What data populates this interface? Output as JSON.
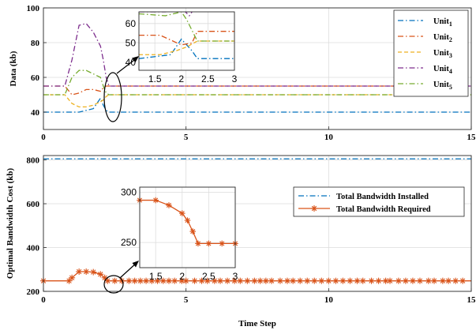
{
  "colors": {
    "unit1": "#0072BD",
    "unit2": "#D95319",
    "unit3": "#EDB120",
    "unit4": "#7E2F8E",
    "unit5": "#77AC30",
    "installed": "#0072BD",
    "required": "#D95319",
    "grid": "#dcdcdc",
    "axis": "#262626"
  },
  "chart_data": [
    {
      "type": "line",
      "ylabel": "Data (kb)",
      "xlabel": "",
      "xlim": [
        0,
        15
      ],
      "ylim": [
        30,
        100
      ],
      "xticks": [
        "0",
        "5",
        "10",
        "15"
      ],
      "yticks": [
        "40",
        "60",
        "80",
        "100"
      ],
      "grid": true,
      "legend_position": "top-right",
      "series": [
        {
          "key": "u1",
          "name": "Unit",
          "sub": "1",
          "color_key": "unit1",
          "dash": "dashdot",
          "x": [
            0,
            0.75,
            1.0,
            1.25,
            1.5,
            1.75,
            2.0,
            2.1,
            2.2,
            2.3,
            15
          ],
          "y": [
            40,
            40,
            40,
            40,
            41,
            42,
            48,
            44,
            41,
            40,
            40
          ]
        },
        {
          "key": "u2",
          "name": "Unit",
          "sub": "2",
          "color_key": "unit2",
          "dash": "dashdot",
          "x": [
            0,
            0.75,
            1.0,
            1.25,
            1.5,
            1.75,
            2.0,
            2.1,
            2.2,
            2.3,
            15
          ],
          "y": [
            55,
            55,
            50,
            51,
            53,
            53,
            52,
            54,
            55,
            55,
            55
          ]
        },
        {
          "key": "u3",
          "name": "Unit",
          "sub": "3",
          "color_key": "unit3",
          "dash": "dashed",
          "x": [
            0,
            0.75,
            1.0,
            1.25,
            1.5,
            1.75,
            2.0,
            2.1,
            2.2,
            2.3,
            15
          ],
          "y": [
            50,
            50,
            45,
            43,
            43,
            44,
            46,
            47,
            49,
            50,
            50
          ]
        },
        {
          "key": "u4",
          "name": "Unit",
          "sub": "4",
          "color_key": "unit4",
          "dash": "dashdot",
          "x": [
            0,
            0.75,
            1.0,
            1.25,
            1.5,
            1.75,
            2.0,
            2.1,
            2.2,
            2.3,
            15
          ],
          "y": [
            55,
            55,
            70,
            90,
            91,
            86,
            78,
            70,
            60,
            55,
            55
          ]
        },
        {
          "key": "u5",
          "name": "Unit",
          "sub": "5",
          "color_key": "unit5",
          "dash": "dashdot",
          "x": [
            0,
            0.75,
            1.0,
            1.25,
            1.5,
            1.75,
            2.0,
            2.1,
            2.2,
            2.3,
            15
          ],
          "y": [
            50,
            50,
            60,
            64,
            64,
            62,
            60,
            55,
            51,
            50,
            50
          ]
        }
      ],
      "inset": {
        "xlim": [
          1.2,
          3
        ],
        "ylim": [
          36,
          66
        ],
        "xticks": [
          "1.5",
          "2",
          "2.5",
          "3"
        ],
        "yticks": [
          "40",
          "50",
          "60"
        ],
        "series": [
          {
            "color_key": "unit1",
            "dash": "dashdot",
            "x": [
              1.2,
              1.8,
              2.0,
              2.2,
              2.3,
              3
            ],
            "y": [
              42,
              44,
              52,
              46,
              42,
              42
            ]
          },
          {
            "color_key": "unit2",
            "dash": "dashdot",
            "x": [
              1.2,
              1.6,
              2.0,
              2.2,
              2.3,
              3
            ],
            "y": [
              54,
              54,
              49,
              50,
              56,
              56
            ]
          },
          {
            "color_key": "unit3",
            "dash": "dashed",
            "x": [
              1.2,
              1.6,
              1.9,
              2.1,
              2.3,
              3
            ],
            "y": [
              44,
              44,
              46,
              48,
              51,
              51
            ]
          },
          {
            "color_key": "unit4",
            "dash": "dashdot",
            "x": [
              1.2,
              1.7,
              2.0,
              2.15,
              2.3
            ],
            "y": [
              66,
              66,
              68,
              64,
              70
            ]
          },
          {
            "color_key": "unit5",
            "dash": "dashdot",
            "x": [
              1.2,
              1.7,
              2.0,
              2.1,
              2.3,
              3
            ],
            "y": [
              65,
              64,
              66,
              62,
              51,
              51
            ]
          }
        ]
      }
    },
    {
      "type": "line",
      "ylabel": "Optimal Bandwidth Cost (kb)",
      "xlabel": "Time Step",
      "xlim": [
        0,
        15
      ],
      "ylim": [
        200,
        820
      ],
      "xticks": [
        "0",
        "5",
        "10",
        "15"
      ],
      "yticks": [
        "200",
        "400",
        "600",
        "800"
      ],
      "grid": true,
      "legend_position": "top-right",
      "series": [
        {
          "key": "installed",
          "name": "Total Bandwidth Installed",
          "color_key": "installed",
          "dash": "dashdot",
          "marker": "none",
          "x": [
            0,
            15
          ],
          "y": [
            805,
            805
          ]
        },
        {
          "key": "required",
          "name": "Total Bandwidth Required",
          "color_key": "required",
          "dash": "solid",
          "marker": "asterisk",
          "x": [
            0,
            0.9,
            1.0,
            1.25,
            1.5,
            1.75,
            2.0,
            2.15,
            2.25,
            2.5,
            2.75,
            3.0,
            15
          ],
          "y": [
            248,
            248,
            262,
            290,
            290,
            288,
            278,
            262,
            248,
            248,
            248,
            248,
            248
          ]
        }
      ],
      "marker_x": [
        0,
        0.9,
        1.0,
        1.25,
        1.5,
        1.75,
        2.0,
        2.15,
        2.25,
        2.5,
        2.75,
        3.0,
        3.2,
        3.4,
        3.6,
        3.8,
        4.0,
        4.2,
        4.4,
        4.6,
        4.85,
        5.0,
        5.3,
        5.55,
        5.75,
        6.0,
        6.2,
        6.45,
        6.7,
        6.9,
        7.15,
        7.4,
        7.6,
        7.8,
        8.0,
        8.3,
        8.55,
        8.75,
        9.0,
        9.25,
        9.5,
        9.75,
        10.0,
        10.25,
        10.5,
        10.75,
        11.0,
        11.2,
        11.5,
        11.75,
        12.0,
        12.15,
        12.45,
        12.7,
        12.95,
        13.2,
        13.5,
        13.7,
        14.0,
        14.2,
        14.45,
        14.7
      ],
      "inset": {
        "xlim": [
          1.2,
          3
        ],
        "ylim": [
          225,
          305
        ],
        "xticks": [
          "1.5",
          "2",
          "2.5",
          "3"
        ],
        "yticks": [
          "250",
          "300"
        ],
        "series": [
          {
            "color_key": "required",
            "dash": "solid",
            "marker": "asterisk",
            "x": [
              1.2,
              1.5,
              1.75,
              2.0,
              2.1,
              2.2,
              2.3,
              2.5,
              2.75,
              3.0
            ],
            "y": [
              292,
              292,
              287,
              279,
              272,
              261,
              249,
              249,
              249,
              249
            ]
          }
        ]
      }
    }
  ]
}
